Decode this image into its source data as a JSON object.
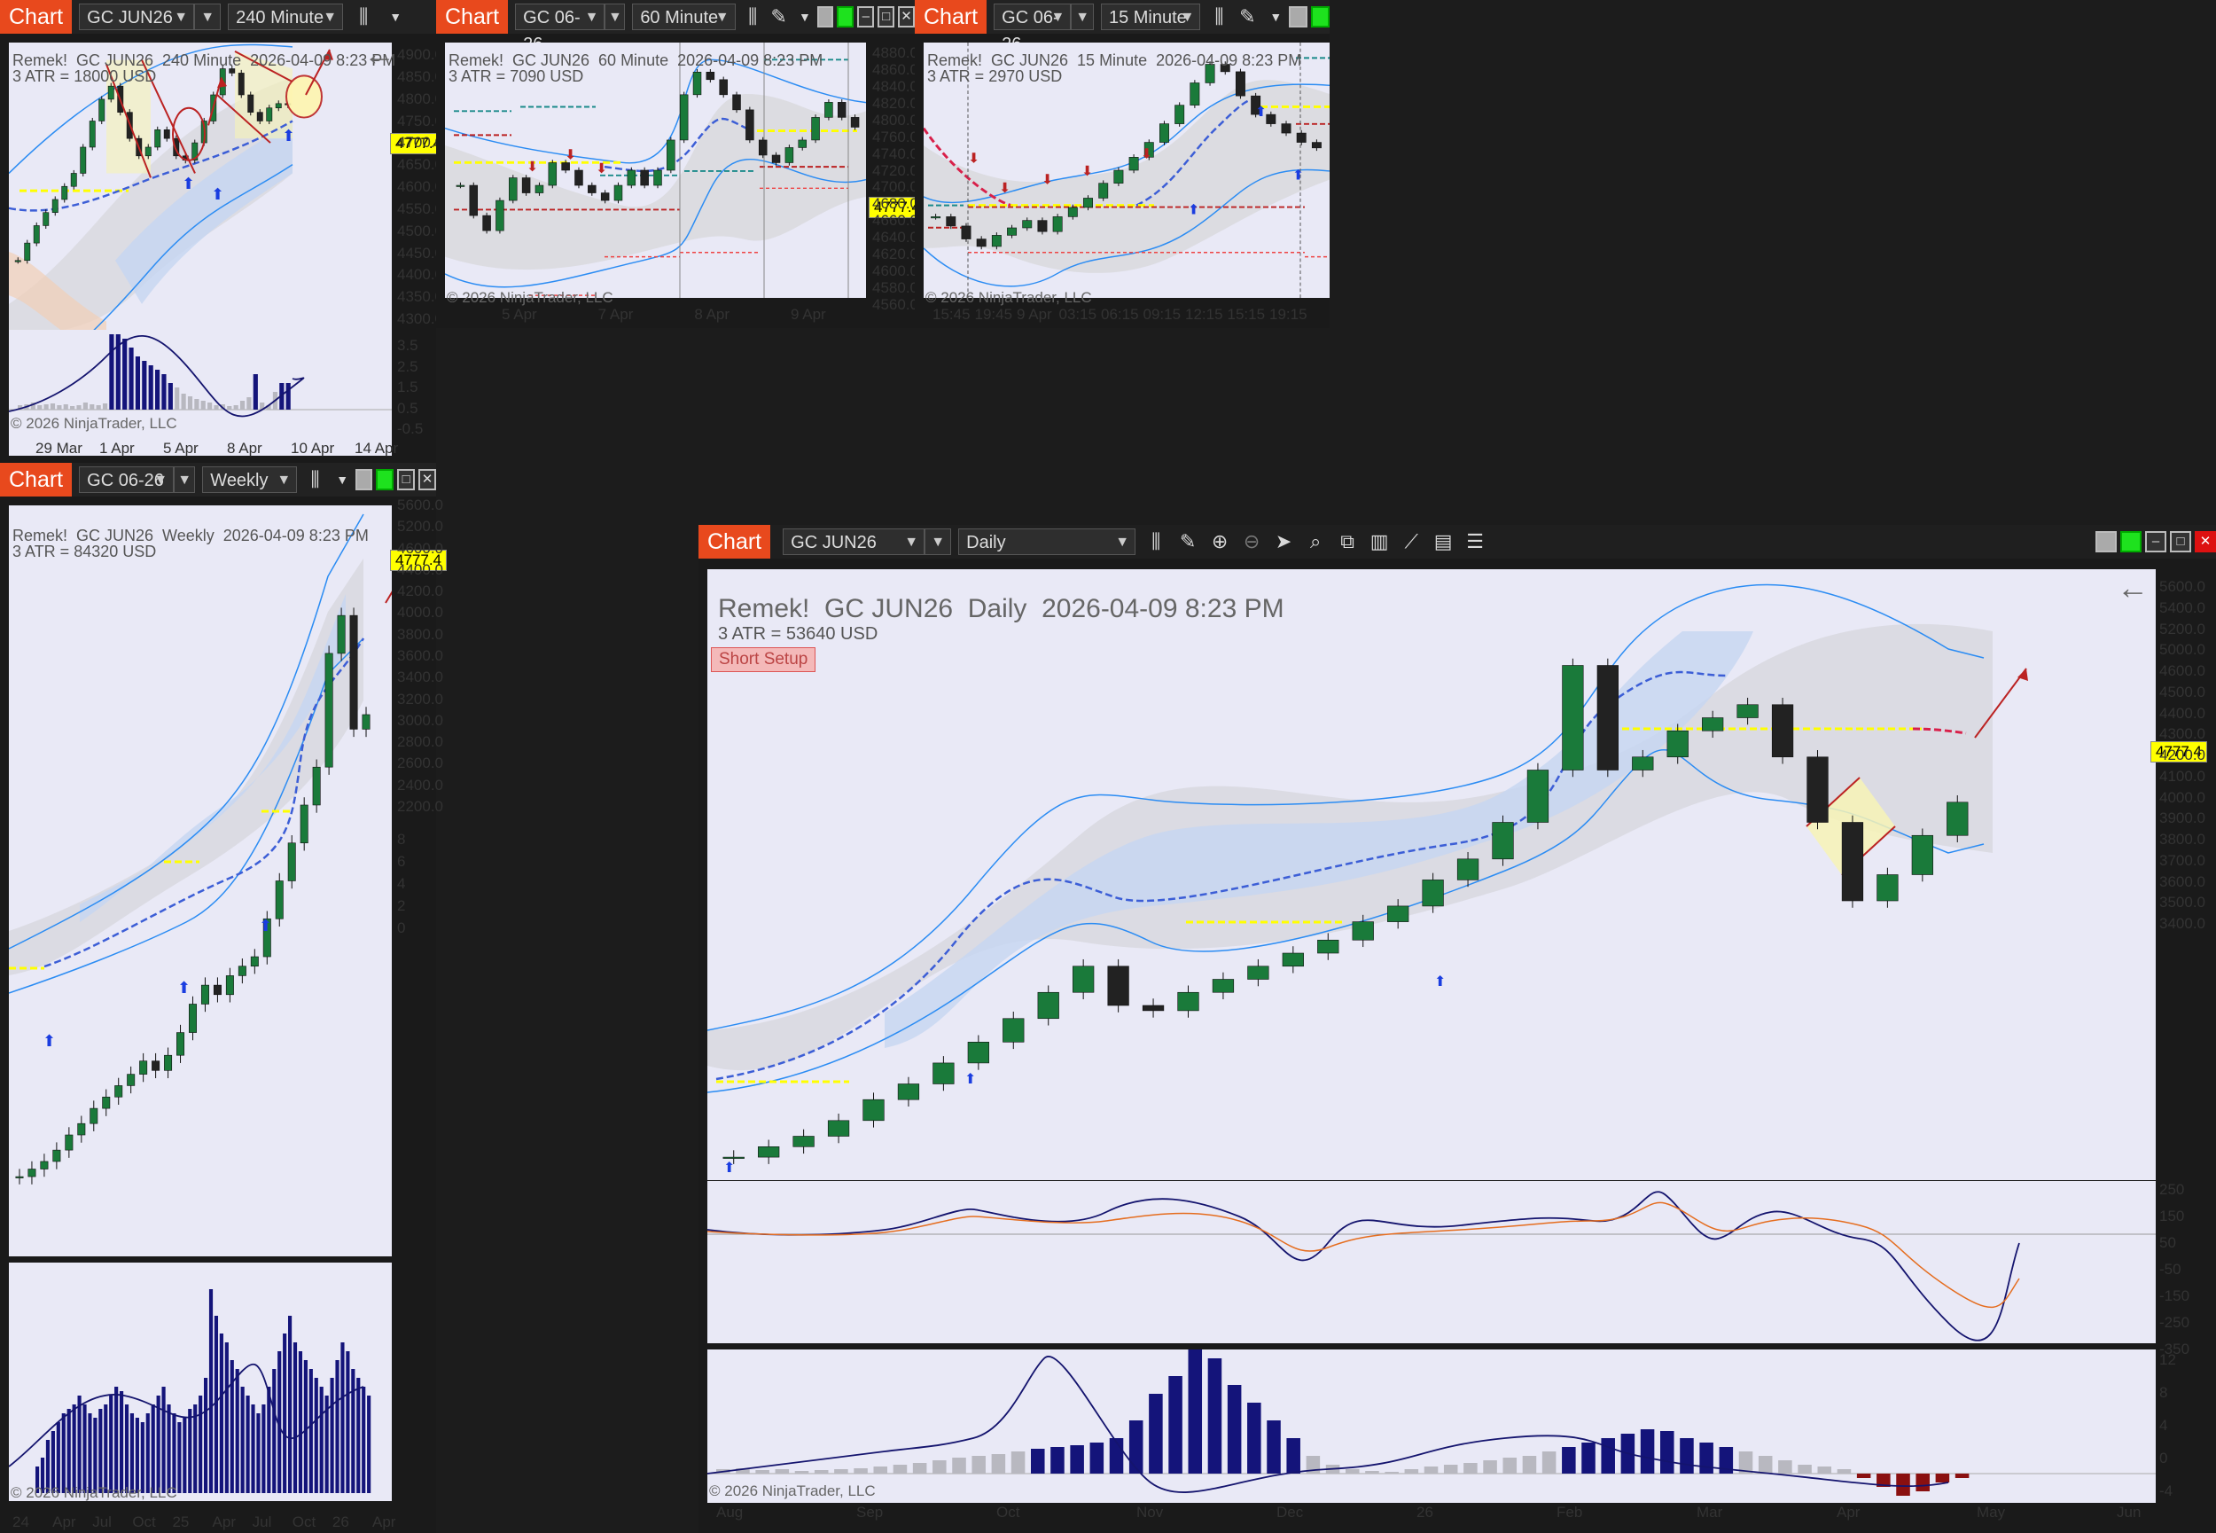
{
  "chart_label": "Chart",
  "windows": [
    {
      "id": "w1",
      "instrument": "GC JUN26",
      "interval": "240 Minute",
      "header": "Remek!  GC JUN26  240 Minute  2026-04-09 8:23 PM",
      "atr": "3 ATR = 18000 USD",
      "copyright": "© 2026 NinjaTrader, LLC",
      "price_badge": "4777.4",
      "y_ticks": [
        "4900.0",
        "4850.0",
        "4800.0",
        "4750.0",
        "4700.0",
        "4650.0",
        "4600.0",
        "4550.0",
        "4500.0",
        "4450.0",
        "4400.0",
        "4350.0",
        "4300.0"
      ],
      "ind_ticks": [
        "3.5",
        "2.5",
        "1.5",
        "0.5",
        "-0.5"
      ],
      "x_ticks": [
        "29 Mar",
        "1 Apr",
        "5 Apr",
        "8 Apr",
        "10 Apr",
        "14 Apr"
      ]
    },
    {
      "id": "w2",
      "instrument": "GC 06-26",
      "interval": "60 Minute",
      "header": "Remek!  GC JUN26  60 Minute  2026-04-09 8:23 PM",
      "atr": "3 ATR = 7090 USD",
      "copyright": "© 2026 NinjaTrader, LLC",
      "price_badge": "4777.4",
      "y_ticks": [
        "4880.0",
        "4860.0",
        "4840.0",
        "4820.0",
        "4800.0",
        "4760.0",
        "4740.0",
        "4720.0",
        "4700.0",
        "4680.0",
        "4660.0",
        "4640.0",
        "4620.0",
        "4600.0",
        "4580.0",
        "4560.0"
      ],
      "x_ticks": [
        "5 Apr",
        "7 Apr",
        "8 Apr",
        "9 Apr"
      ]
    },
    {
      "id": "w3",
      "instrument": "GC 06-26",
      "interval": "15 Minute",
      "header": "Remek!  GC JUN26  15 Minute  2026-04-09 8:23 PM",
      "atr": "3 ATR = 2970 USD",
      "copyright": "© 2026 NinjaTrader, LLC",
      "price_badge": "4777.4",
      "y_ticks": [
        "4830.0",
        "4820.0",
        "4810.0",
        "4800.0",
        "4790.0",
        "4770.0",
        "4760.0",
        "4750.0",
        "4740.0",
        "4730.0",
        "4720.0",
        "4710.0",
        "4700.0"
      ],
      "x_ticks": [
        "15:45",
        "19:45",
        "9 Apr",
        "03:15",
        "06:15",
        "09:15",
        "12:15",
        "15:15",
        "19:15"
      ]
    },
    {
      "id": "w4",
      "instrument": "GC 06-26",
      "interval": "Weekly",
      "header": "Remek!  GC JUN26  Weekly  2026-04-09 8:23 PM",
      "atr": "3 ATR = 84320 USD",
      "copyright": "© 2026 NinjaTrader, LLC",
      "price_badge": "4777.4",
      "y_ticks": [
        "5600.0",
        "5200.0",
        "4600.0",
        "4400.0",
        "4200.0",
        "4000.0",
        "3800.0",
        "3600.0",
        "3400.0",
        "3200.0",
        "3000.0",
        "2800.0",
        "2600.0",
        "2400.0",
        "2200.0"
      ],
      "ind_ticks": [
        "8",
        "6",
        "4",
        "2",
        "0"
      ],
      "x_ticks": [
        "24",
        "Apr",
        "Jul",
        "Oct",
        "25",
        "Apr",
        "Jul",
        "Oct",
        "26",
        "Apr"
      ]
    },
    {
      "id": "w5",
      "instrument": "GC JUN26",
      "interval": "Daily",
      "header": "Remek!  GC JUN26  Daily  2026-04-09 8:23 PM",
      "atr": "3 ATR = 53640 USD",
      "setup": "Short Setup",
      "copyright": "© 2026 NinjaTrader, LLC",
      "price_badge": "4777.4",
      "y_ticks": [
        "5600.0",
        "5400.0",
        "5200.0",
        "5000.0",
        "4600.0",
        "4500.0",
        "4400.0",
        "4300.0",
        "4200.0",
        "4100.0",
        "4000.0",
        "3900.0",
        "3800.0",
        "3700.0",
        "3600.0",
        "3500.0",
        "3400.0"
      ],
      "macd_ticks": [
        "250",
        "150",
        "50",
        "-50",
        "-150",
        "-250",
        "-350"
      ],
      "ind_ticks": [
        "12",
        "8",
        "4",
        "0",
        "-4"
      ],
      "x_ticks": [
        "Aug",
        "Sep",
        "Oct",
        "Nov",
        "Dec",
        "26",
        "Feb",
        "Mar",
        "Apr",
        "May",
        "Jun"
      ]
    }
  ],
  "chart_data": [
    {
      "type": "candlestick",
      "title": "GC JUN26 240 Minute",
      "ylim": [
        4300,
        4900
      ],
      "last": 4777.4,
      "closes": [
        4420,
        4460,
        4500,
        4530,
        4560,
        4590,
        4620,
        4680,
        4740,
        4790,
        4820,
        4760,
        4700,
        4660,
        4680,
        4720,
        4700,
        4660,
        4650,
        4690,
        4740,
        4800,
        4860,
        4850,
        4800,
        4760,
        4740,
        4770,
        4780,
        4777
      ]
    },
    {
      "type": "candlestick",
      "title": "GC JUN26 60 Minute",
      "ylim": [
        4560,
        4880
      ],
      "last": 4777.4,
      "closes": [
        4700,
        4660,
        4640,
        4680,
        4710,
        4690,
        4700,
        4730,
        4720,
        4700,
        4690,
        4680,
        4700,
        4720,
        4700,
        4720,
        4760,
        4820,
        4850,
        4840,
        4820,
        4800,
        4760,
        4740,
        4730,
        4750,
        4760,
        4790,
        4810,
        4790,
        4777
      ]
    },
    {
      "type": "candlestick",
      "title": "GC JUN26 15 Minute",
      "ylim": [
        4700,
        4830
      ],
      "last": 4777.4,
      "closes": [
        4740,
        4735,
        4728,
        4724,
        4730,
        4734,
        4738,
        4732,
        4740,
        4745,
        4750,
        4758,
        4765,
        4772,
        4780,
        4790,
        4800,
        4812,
        4822,
        4818,
        4805,
        4795,
        4790,
        4785,
        4780,
        4777
      ]
    },
    {
      "type": "candlestick",
      "title": "GC JUN26 Weekly",
      "ylim": [
        2200,
        5600
      ],
      "last": 4777.4,
      "closes": [
        2340,
        2380,
        2420,
        2480,
        2560,
        2620,
        2700,
        2760,
        2820,
        2880,
        2950,
        2900,
        2980,
        3100,
        3250,
        3350,
        3300,
        3400,
        3450,
        3500,
        3700,
        3900,
        4100,
        4300,
        4500,
        5100,
        5300,
        4700,
        4777
      ]
    },
    {
      "type": "candlestick",
      "title": "GC JUN26 Daily",
      "ylim": [
        3400,
        5600
      ],
      "last": 4777.4,
      "closes": [
        3420,
        3460,
        3500,
        3560,
        3640,
        3700,
        3780,
        3860,
        3950,
        4050,
        4150,
        4000,
        3980,
        4050,
        4100,
        4150,
        4200,
        4250,
        4320,
        4380,
        4480,
        4560,
        4700,
        4900,
        5300,
        4900,
        4950,
        5050,
        5100,
        5150,
        4950,
        4700,
        4400,
        4500,
        4650,
        4777
      ]
    }
  ]
}
